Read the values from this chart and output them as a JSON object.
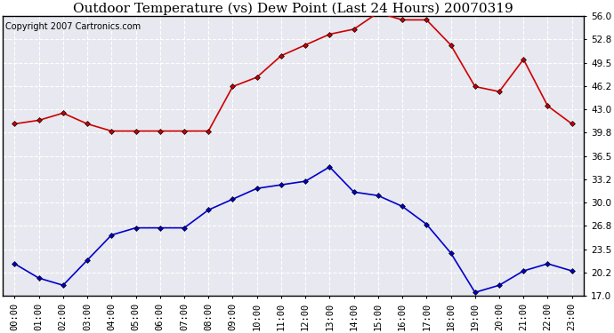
{
  "title": "Outdoor Temperature (vs) Dew Point (Last 24 Hours) 20070319",
  "copyright": "Copyright 2007 Cartronics.com",
  "hours": [
    "00:00",
    "01:00",
    "02:00",
    "03:00",
    "04:00",
    "05:00",
    "06:00",
    "07:00",
    "08:00",
    "09:00",
    "10:00",
    "11:00",
    "12:00",
    "13:00",
    "14:00",
    "15:00",
    "16:00",
    "17:00",
    "18:00",
    "19:00",
    "20:00",
    "21:00",
    "22:00",
    "23:00"
  ],
  "temp": [
    41.0,
    41.5,
    42.5,
    41.0,
    40.0,
    40.0,
    40.0,
    40.0,
    40.0,
    46.2,
    47.5,
    50.5,
    52.0,
    53.5,
    54.2,
    56.5,
    55.5,
    55.5,
    52.0,
    46.2,
    45.5,
    50.0,
    43.5,
    41.0
  ],
  "dew": [
    21.5,
    19.5,
    18.5,
    22.0,
    25.5,
    26.5,
    26.5,
    26.5,
    29.0,
    30.5,
    32.0,
    32.5,
    33.0,
    35.0,
    31.5,
    31.0,
    29.5,
    27.0,
    23.0,
    17.5,
    18.5,
    20.5,
    21.5,
    20.5
  ],
  "ylim": [
    17.0,
    56.0
  ],
  "yticks": [
    17.0,
    20.2,
    23.5,
    26.8,
    30.0,
    33.2,
    36.5,
    39.8,
    43.0,
    46.2,
    49.5,
    52.8,
    56.0
  ],
  "temp_color": "#cc0000",
  "dew_color": "#0000cc",
  "plot_bg_color": "#e8e8f0",
  "fig_bg_color": "#ffffff",
  "grid_color": "#c8c8c8",
  "marker": "D",
  "marker_size": 3,
  "line_width": 1.2,
  "title_fontsize": 11,
  "tick_fontsize": 7.5,
  "copyright_fontsize": 7
}
